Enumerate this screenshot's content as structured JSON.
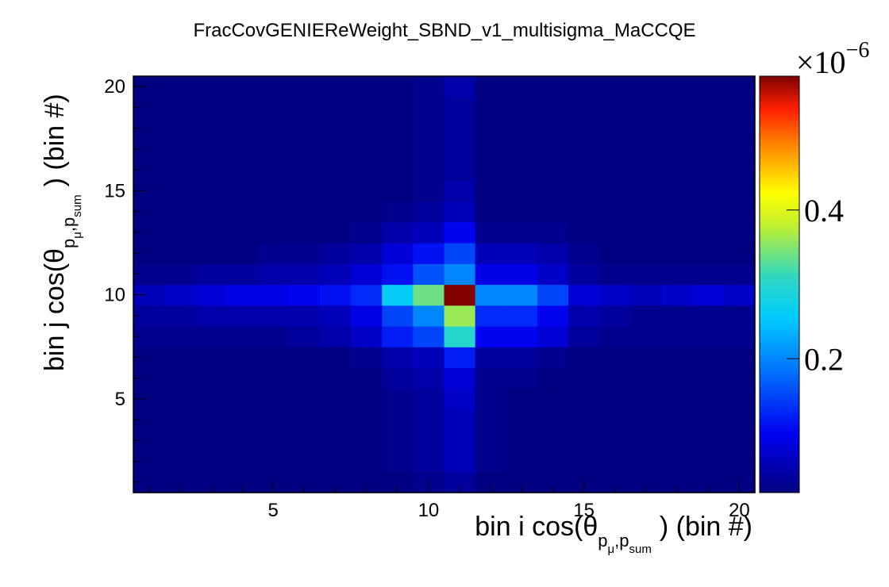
{
  "chart_data": {
    "type": "heatmap",
    "title": "FracCovGENIEReWeight_SBND_v1_multisigma_MaCCQE",
    "xlabel": {
      "main": "bin i cos(θ",
      "sub1": "p",
      "sub1_sub": "μ",
      "sub2": "p",
      "sub2_sub": "sum",
      "tail": ") (bin #)"
    },
    "ylabel": {
      "main": "bin j cos(θ",
      "sub1": "p",
      "sub1_sub": "μ",
      "sub2": "p",
      "sub2_sub": "sum",
      "tail": ") (bin #)"
    },
    "x_bins": 20,
    "y_bins": 20,
    "xlim": [
      0.5,
      20.5
    ],
    "ylim": [
      0.5,
      20.5
    ],
    "x_ticks": [
      5,
      10,
      15,
      20
    ],
    "y_ticks": [
      5,
      10,
      15,
      20
    ],
    "colorbar": {
      "multiplier": "×10",
      "exponent": "−6",
      "ticks": [
        0.2,
        0.4
      ],
      "tick_labels": [
        "0.2",
        "0.4"
      ],
      "range": [
        0.02,
        0.58
      ]
    },
    "colorscale": [
      "#000080",
      "#0000ff",
      "#0080ff",
      "#00c8ff",
      "#30d0c8",
      "#b0f040",
      "#ffff00",
      "#ff8000",
      "#ff2000",
      "#800000"
    ],
    "z_units": "×10^-6",
    "values": [
      [
        0.01,
        0.01,
        0.01,
        0.01,
        0.01,
        0.01,
        0.01,
        0.01,
        0.02,
        0.03,
        0.04,
        0.02,
        0.01,
        0.01,
        0.01,
        0.01,
        0.01,
        0.01,
        0.01,
        0.01
      ],
      [
        0.01,
        0.01,
        0.01,
        0.01,
        0.01,
        0.01,
        0.01,
        0.01,
        0.03,
        0.04,
        0.06,
        0.03,
        0.02,
        0.01,
        0.01,
        0.01,
        0.01,
        0.01,
        0.01,
        0.01
      ],
      [
        0.01,
        0.01,
        0.01,
        0.01,
        0.01,
        0.01,
        0.01,
        0.01,
        0.03,
        0.04,
        0.06,
        0.03,
        0.02,
        0.01,
        0.01,
        0.01,
        0.01,
        0.01,
        0.01,
        0.01
      ],
      [
        0.01,
        0.01,
        0.01,
        0.01,
        0.01,
        0.01,
        0.01,
        0.01,
        0.03,
        0.04,
        0.06,
        0.03,
        0.02,
        0.01,
        0.01,
        0.01,
        0.01,
        0.01,
        0.01,
        0.01
      ],
      [
        0.01,
        0.01,
        0.01,
        0.01,
        0.01,
        0.01,
        0.01,
        0.01,
        0.03,
        0.04,
        0.07,
        0.03,
        0.02,
        0.01,
        0.01,
        0.01,
        0.01,
        0.01,
        0.01,
        0.01
      ],
      [
        0.01,
        0.01,
        0.01,
        0.01,
        0.01,
        0.01,
        0.02,
        0.02,
        0.04,
        0.05,
        0.08,
        0.03,
        0.03,
        0.02,
        0.01,
        0.01,
        0.01,
        0.01,
        0.01,
        0.01
      ],
      [
        0.01,
        0.01,
        0.01,
        0.01,
        0.01,
        0.01,
        0.02,
        0.03,
        0.05,
        0.06,
        0.12,
        0.04,
        0.04,
        0.03,
        0.02,
        0.01,
        0.01,
        0.01,
        0.01,
        0.01
      ],
      [
        0.03,
        0.03,
        0.03,
        0.03,
        0.03,
        0.04,
        0.05,
        0.07,
        0.12,
        0.15,
        0.3,
        0.1,
        0.1,
        0.08,
        0.04,
        0.03,
        0.03,
        0.03,
        0.03,
        0.03
      ],
      [
        0.04,
        0.04,
        0.05,
        0.05,
        0.05,
        0.05,
        0.06,
        0.09,
        0.15,
        0.2,
        0.36,
        0.13,
        0.13,
        0.1,
        0.05,
        0.04,
        0.03,
        0.03,
        0.03,
        0.03
      ],
      [
        0.06,
        0.07,
        0.08,
        0.09,
        0.09,
        0.1,
        0.11,
        0.13,
        0.26,
        0.34,
        0.58,
        0.2,
        0.2,
        0.15,
        0.08,
        0.07,
        0.06,
        0.07,
        0.08,
        0.07
      ],
      [
        0.03,
        0.03,
        0.04,
        0.04,
        0.05,
        0.05,
        0.06,
        0.08,
        0.11,
        0.16,
        0.2,
        0.09,
        0.09,
        0.07,
        0.04,
        0.03,
        0.03,
        0.03,
        0.03,
        0.03
      ],
      [
        0.02,
        0.02,
        0.02,
        0.02,
        0.03,
        0.03,
        0.04,
        0.05,
        0.08,
        0.11,
        0.15,
        0.06,
        0.06,
        0.05,
        0.03,
        0.02,
        0.02,
        0.02,
        0.02,
        0.02
      ],
      [
        0.01,
        0.01,
        0.01,
        0.01,
        0.01,
        0.01,
        0.02,
        0.03,
        0.05,
        0.06,
        0.1,
        0.03,
        0.03,
        0.03,
        0.02,
        0.01,
        0.01,
        0.01,
        0.01,
        0.01
      ],
      [
        0.01,
        0.01,
        0.01,
        0.01,
        0.01,
        0.01,
        0.01,
        0.02,
        0.03,
        0.04,
        0.06,
        0.02,
        0.02,
        0.02,
        0.01,
        0.01,
        0.01,
        0.01,
        0.01,
        0.01
      ],
      [
        0.01,
        0.01,
        0.01,
        0.01,
        0.01,
        0.01,
        0.01,
        0.01,
        0.02,
        0.03,
        0.05,
        0.02,
        0.02,
        0.01,
        0.01,
        0.01,
        0.01,
        0.01,
        0.01,
        0.01
      ],
      [
        0.01,
        0.01,
        0.01,
        0.01,
        0.01,
        0.01,
        0.01,
        0.01,
        0.02,
        0.03,
        0.04,
        0.02,
        0.01,
        0.01,
        0.01,
        0.01,
        0.01,
        0.01,
        0.01,
        0.01
      ],
      [
        0.01,
        0.01,
        0.01,
        0.01,
        0.01,
        0.01,
        0.01,
        0.01,
        0.02,
        0.03,
        0.04,
        0.02,
        0.01,
        0.01,
        0.01,
        0.01,
        0.01,
        0.01,
        0.01,
        0.01
      ],
      [
        0.01,
        0.01,
        0.01,
        0.01,
        0.01,
        0.01,
        0.01,
        0.01,
        0.02,
        0.03,
        0.04,
        0.02,
        0.01,
        0.01,
        0.01,
        0.01,
        0.01,
        0.01,
        0.01,
        0.01
      ],
      [
        0.01,
        0.01,
        0.01,
        0.01,
        0.01,
        0.01,
        0.01,
        0.01,
        0.02,
        0.03,
        0.04,
        0.02,
        0.02,
        0.01,
        0.01,
        0.01,
        0.01,
        0.01,
        0.01,
        0.01
      ],
      [
        0.01,
        0.01,
        0.01,
        0.01,
        0.01,
        0.01,
        0.01,
        0.01,
        0.02,
        0.03,
        0.05,
        0.02,
        0.02,
        0.01,
        0.01,
        0.01,
        0.01,
        0.01,
        0.01,
        0.01
      ]
    ]
  }
}
